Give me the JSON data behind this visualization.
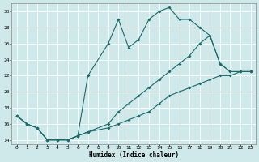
{
  "xlabel": "Humidex (Indice chaleur)",
  "bg_color": "#cfe9ea",
  "grid_color": "#b0d0d0",
  "line_color": "#1a6b6b",
  "xlim": [
    -0.5,
    23.5
  ],
  "ylim": [
    13.5,
    31
  ],
  "xticks": [
    0,
    1,
    2,
    3,
    4,
    5,
    6,
    7,
    8,
    9,
    10,
    11,
    12,
    13,
    14,
    15,
    16,
    17,
    18,
    19,
    20,
    21,
    22,
    23
  ],
  "yticks": [
    14,
    16,
    18,
    20,
    22,
    24,
    26,
    28,
    30
  ],
  "series1_x": [
    0,
    1,
    2,
    3,
    4,
    5,
    6,
    7,
    9,
    10,
    11,
    12,
    13,
    14,
    15,
    16,
    17,
    18,
    19,
    20,
    21,
    22,
    23
  ],
  "series1_y": [
    17,
    16,
    15.5,
    14,
    14,
    14,
    14.5,
    22,
    26,
    29,
    25.5,
    26.5,
    29,
    30,
    30.5,
    29,
    29,
    28,
    27,
    23.5,
    22.5,
    22.5,
    22.5
  ],
  "series2_x": [
    0,
    1,
    2,
    3,
    4,
    5,
    6,
    7,
    9,
    10,
    11,
    12,
    13,
    14,
    15,
    16,
    17,
    18,
    19,
    20,
    21,
    22,
    23
  ],
  "series2_y": [
    17,
    16,
    15.5,
    14,
    14,
    14,
    14.5,
    15,
    16,
    17.5,
    18.5,
    19.5,
    20.5,
    21.5,
    22.5,
    23.5,
    24.5,
    26,
    27,
    23.5,
    22.5,
    22.5,
    22.5
  ],
  "series3_x": [
    0,
    1,
    2,
    3,
    4,
    5,
    6,
    7,
    9,
    10,
    11,
    12,
    13,
    14,
    15,
    16,
    17,
    18,
    19,
    20,
    21,
    22,
    23
  ],
  "series3_y": [
    17,
    16,
    15.5,
    14,
    14,
    14,
    14.5,
    15,
    15.5,
    16,
    16.5,
    17,
    17.5,
    18.5,
    19.5,
    20,
    20.5,
    21,
    21.5,
    22,
    22,
    22.5,
    22.5
  ]
}
